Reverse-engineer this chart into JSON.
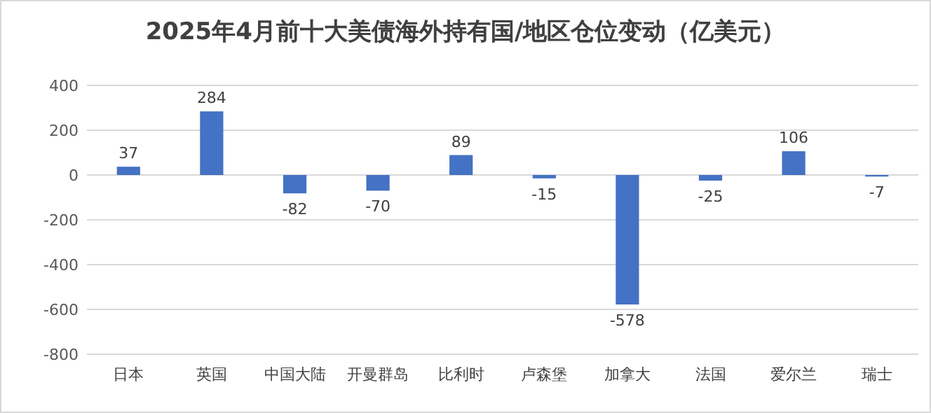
{
  "chart_data": {
    "type": "bar",
    "title": "2025年4月前十大美债海外持有国/地区仓位变动（亿美元）",
    "categories": [
      "日本",
      "英国",
      "中国大陆",
      "开曼群岛",
      "比利时",
      "卢森堡",
      "加拿大",
      "法国",
      "爱尔兰",
      "瑞士"
    ],
    "values": [
      37,
      284,
      -82,
      -70,
      89,
      -15,
      -578,
      -25,
      106,
      -7
    ],
    "color": "#4472c4",
    "data_labels": true,
    "grid": "y",
    "ylim": [
      -800,
      400
    ],
    "yticks": [
      -800,
      -600,
      -400,
      -200,
      0,
      200,
      400
    ]
  }
}
